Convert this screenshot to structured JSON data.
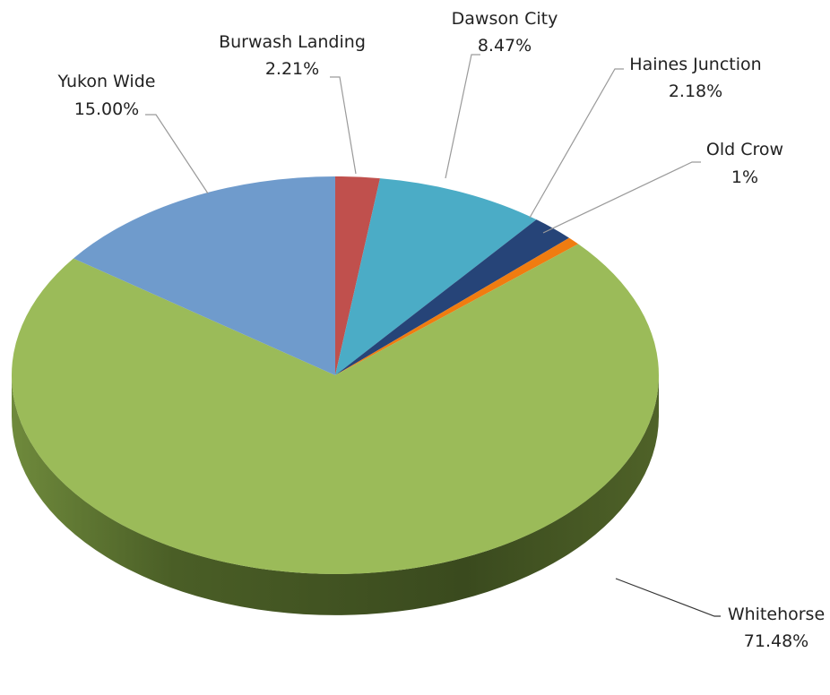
{
  "chart_data": {
    "type": "pie",
    "variant": "3d",
    "title": "",
    "slices": [
      {
        "label": "Burwash Landing",
        "value": 2.21,
        "display": "2.21%",
        "color": "#c0504d"
      },
      {
        "label": "Dawson City",
        "value": 8.47,
        "display": "8.47%",
        "color": "#4bacc6"
      },
      {
        "label": "Haines Junction",
        "value": 2.18,
        "display": "2.18%",
        "color": "#264478"
      },
      {
        "label": "Old Crow",
        "value": 0.66,
        "display": "1%",
        "color": "#f07c10"
      },
      {
        "label": "Whitehorse",
        "value": 71.48,
        "display": "71.48%",
        "color": "#9bbb59",
        "side_color": "#4f6228"
      },
      {
        "label": "Yukon Wide",
        "value": 15.0,
        "display": "15.00%",
        "color": "#6f9bcc"
      }
    ]
  }
}
